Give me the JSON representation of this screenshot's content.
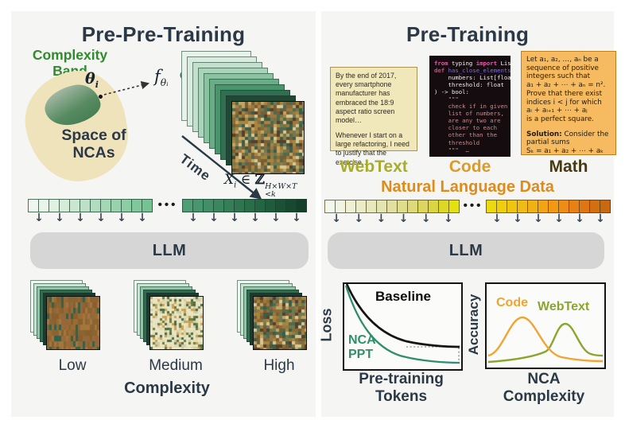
{
  "figure": {
    "left": {
      "title": "Pre-Pre-Training",
      "complexity_band": {
        "line1": "Complexity",
        "line2": "Band"
      },
      "space_of_ncas": {
        "line1": "Space of",
        "line2": "NCAs"
      },
      "theta": {
        "main": "θ",
        "sub": "i"
      },
      "f_label": {
        "main": "f",
        "sub": "θᵢ"
      },
      "time_label": "Time",
      "formula": {
        "x": "X",
        "xsub": "i",
        "elem": "∈",
        "set": "ℤ",
        "sup": "H×W×T",
        "sub": "<k"
      },
      "llm_label": "LLM",
      "complexity_levels": {
        "low": "Low",
        "medium": "Medium",
        "high": "High",
        "axis": "Complexity"
      },
      "strip_a": [
        "#eef6f0",
        "#e8f3ea",
        "#e0f0e3",
        "#d6ecdb",
        "#c9e6d1",
        "#bce1c8",
        "#b0dcbf",
        "#a4d7b6",
        "#98d2ad",
        "#8ccda4",
        "#80c89b",
        "#74c392"
      ],
      "strip_b": [
        "#4f9e76",
        "#48966e",
        "#428e66",
        "#3b865e",
        "#357e57",
        "#2f7650",
        "#296e49",
        "#246543",
        "#1f5c3d",
        "#1b5237",
        "#174831",
        "#143f2b"
      ],
      "stack_layers": [
        "#e6f2ea",
        "#d8ebde",
        "#c2e0cd",
        "#a8d4b9",
        "#8ac3a2",
        "#68ad87",
        "#4a946d",
        "#326f52",
        "#1f4936"
      ],
      "small_stack_layers": [
        "#f0f7f2",
        "#c8e3d2",
        "#8fc6a6",
        "#2e6b4f",
        "#173d2d"
      ]
    },
    "right": {
      "title": "Pre-Training",
      "cards": {
        "webtext": {
          "label": "WebText",
          "para1": "By the end of 2017, every smartphone manufacturer has embraced the 18:9 aspect ratio screen model…",
          "para2": "Whenever I start on a large refactoring, I need to justify that the exercise…"
        },
        "code": {
          "label": "Code",
          "lines": [
            [
              [
                "from",
                "kw"
              ],
              [
                " typing ",
                "pl"
              ],
              [
                "import",
                "kw"
              ],
              [
                " List",
                "pl"
              ]
            ],
            [
              [
                "def ",
                "kw2"
              ],
              [
                "has_close_elements",
                "fn"
              ],
              [
                "(",
                "pl"
              ]
            ],
            [
              [
                "    numbers: List[float],",
                "pl"
              ]
            ],
            [
              [
                "    threshold: float",
                "pl"
              ]
            ],
            [
              [
                ") -> bool:",
                "pl"
              ]
            ],
            [
              [
                "    \"\"\"",
                "doc"
              ]
            ],
            [
              [
                "    check if in given",
                "doc"
              ]
            ],
            [
              [
                "    list of numbers,",
                "doc"
              ]
            ],
            [
              [
                "    are any two are",
                "doc"
              ]
            ],
            [
              [
                "    closer to each",
                "doc"
              ]
            ],
            [
              [
                "    other than the",
                "doc"
              ]
            ],
            [
              [
                "    threshold",
                "doc"
              ]
            ],
            [
              [
                "    \"\"\"  …",
                "doc"
              ]
            ]
          ]
        },
        "math": {
          "label": "Math",
          "para1_lines": [
            "Let a₁, a₂, …, aₙ be a",
            "sequence of positive",
            "integers such that",
            "a₁ + a₂ + ⋯ + aₙ = n².",
            "Prove that there exist",
            "indices i < j for which",
            "aᵢ + aᵢ₊₁ + ⋯ + aⱼ",
            "is a perfect square."
          ],
          "solution_bold": "Solution:",
          "solution_rest": " Consider the",
          "para2_lines": [
            "partial sums",
            "Sₖ = a₁ + a₂ + ⋯ + aₖ"
          ]
        }
      },
      "natural_language_data": "Natural Language Data",
      "llm_label": "LLM",
      "strip_a": [
        "#f3f8ec",
        "#f0f4e0",
        "#edf0d4",
        "#eaecc8",
        "#e7e8bc",
        "#e4e4b0",
        "#e1e0a0",
        "#dfdc8c",
        "#ddd976",
        "#dcd65e",
        "#dcd542",
        "#ddd826",
        "#e4e112"
      ],
      "strip_b": [
        "#ecd90f",
        "#edcf10",
        "#eec511",
        "#f0bb12",
        "#f1b013",
        "#f2a414",
        "#f29815",
        "#ee8c14",
        "#e88013",
        "#de7712",
        "#d36f11",
        "#c86810"
      ],
      "loss_chart": {
        "ylabel": "Loss",
        "xlabel1": "Pre-training",
        "xlabel2": "Tokens",
        "baseline": "Baseline",
        "nca1": "NCA",
        "nca2": "PPT"
      },
      "acc_chart": {
        "ylabel": "Accuracy",
        "xlabel1": "NCA",
        "xlabel2": "Complexity",
        "code": "Code",
        "webtext": "WebText"
      }
    }
  },
  "glyphs": {
    "down_arrow": "↓",
    "ellipsis": "•••",
    "cycle_arrow": "↻"
  },
  "colors": {
    "title": "#2b3947",
    "green_label": "#2e8b2e",
    "teal_curve": "#2e8e6e",
    "webtext_label": "#a8ad2a",
    "code_label": "#dd9a25",
    "math_label": "#473a12",
    "nld_label": "#dd8c1c",
    "chart_orange": "#f0a433",
    "chart_olive": "#8aa62f",
    "llm_bg": "#d6d6d6",
    "panel_bg": "#f5f6f3",
    "blob": "#efe3bb"
  },
  "textures": {
    "high": [
      "#8a6b3a",
      "#a8853f",
      "#6e7a50",
      "#3e5c45",
      "#d9c894",
      "#55402a",
      "#9a7a40",
      "#4e6b4f",
      "#c2a565",
      "#7a5c35"
    ],
    "low": [
      "#9a6b35",
      "#8a5f2e",
      "#a4763c",
      "#94683a",
      "#35604a",
      "#8a6532"
    ],
    "medium": [
      "#e9e5c2",
      "#e4dfb8",
      "#ddd8ae",
      "#6e7a3e",
      "#4a6b45",
      "#caa251",
      "#e9e5c2",
      "#e9e5c2",
      "#d0ccaa",
      "#e9e5c2"
    ]
  },
  "chart_data": [
    {
      "type": "line",
      "title": "",
      "xlabel": "Pre-training Tokens",
      "ylabel": "Loss",
      "axis_ticks": "none (schematic)",
      "series": [
        {
          "name": "Baseline",
          "color": "#141414",
          "x_norm": [
            0,
            0.2,
            0.4,
            0.6,
            0.8,
            1.0
          ],
          "y_norm": [
            1.0,
            0.55,
            0.35,
            0.29,
            0.27,
            0.26
          ]
        },
        {
          "name": "NCA PPT",
          "color": "#2e8e6e",
          "x_norm": [
            0,
            0.2,
            0.4,
            0.6,
            0.8,
            1.0
          ],
          "y_norm": [
            1.0,
            0.42,
            0.2,
            0.12,
            0.09,
            0.08
          ]
        }
      ],
      "annotations": [
        "dotted guide marking gap between Baseline and NCA PPT asymptotes at right edge"
      ],
      "legend_position": "in-plot text labels"
    },
    {
      "type": "line",
      "title": "",
      "xlabel": "NCA Complexity",
      "ylabel": "Accuracy",
      "axis_ticks": "none (schematic)",
      "series": [
        {
          "name": "Code",
          "color": "#f0a433",
          "shape": "bell curve",
          "peak_x_norm": 0.3,
          "peak_y_norm": 0.62
        },
        {
          "name": "WebText",
          "color": "#8aa62f",
          "shape": "bell curve",
          "peak_x_norm": 0.67,
          "peak_y_norm": 0.55
        }
      ],
      "legend_position": "in-plot text labels"
    }
  ]
}
